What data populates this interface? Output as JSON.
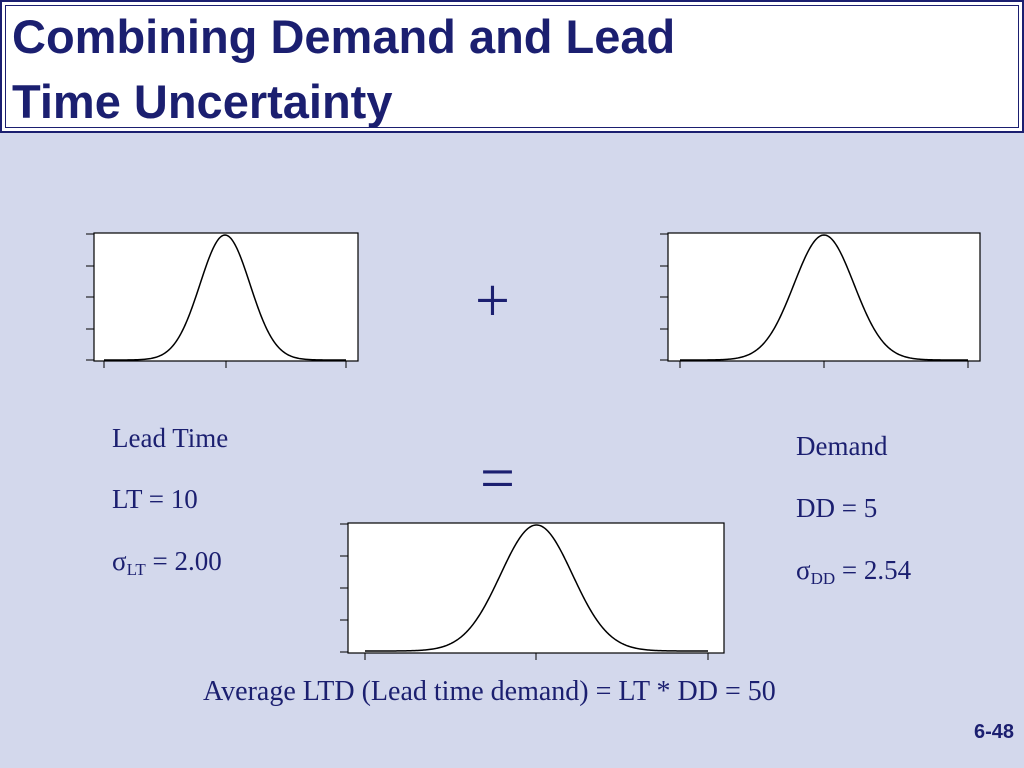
{
  "slide": {
    "title_line1": "Combining Demand and Lead",
    "title_line2": "Time Uncertainty",
    "plus_symbol": "+",
    "equals_symbol": "=",
    "lead_time": {
      "heading": "Lead Time",
      "mean_text": "LT = 10",
      "sigma_symbol": "σ",
      "sigma_sub": "LT",
      "sigma_value": " = 2.00"
    },
    "demand": {
      "heading": "Demand",
      "mean_text": "DD = 5",
      "sigma_symbol": "σ",
      "sigma_sub": "DD",
      "sigma_value": " = 2.54"
    },
    "formula": "Average LTD (Lead time demand) = LT * DD = 50",
    "page_number": "6-48"
  },
  "colors": {
    "background": "#d3d8ec",
    "title_text": "#1b1f70",
    "curve": "#000000"
  }
}
